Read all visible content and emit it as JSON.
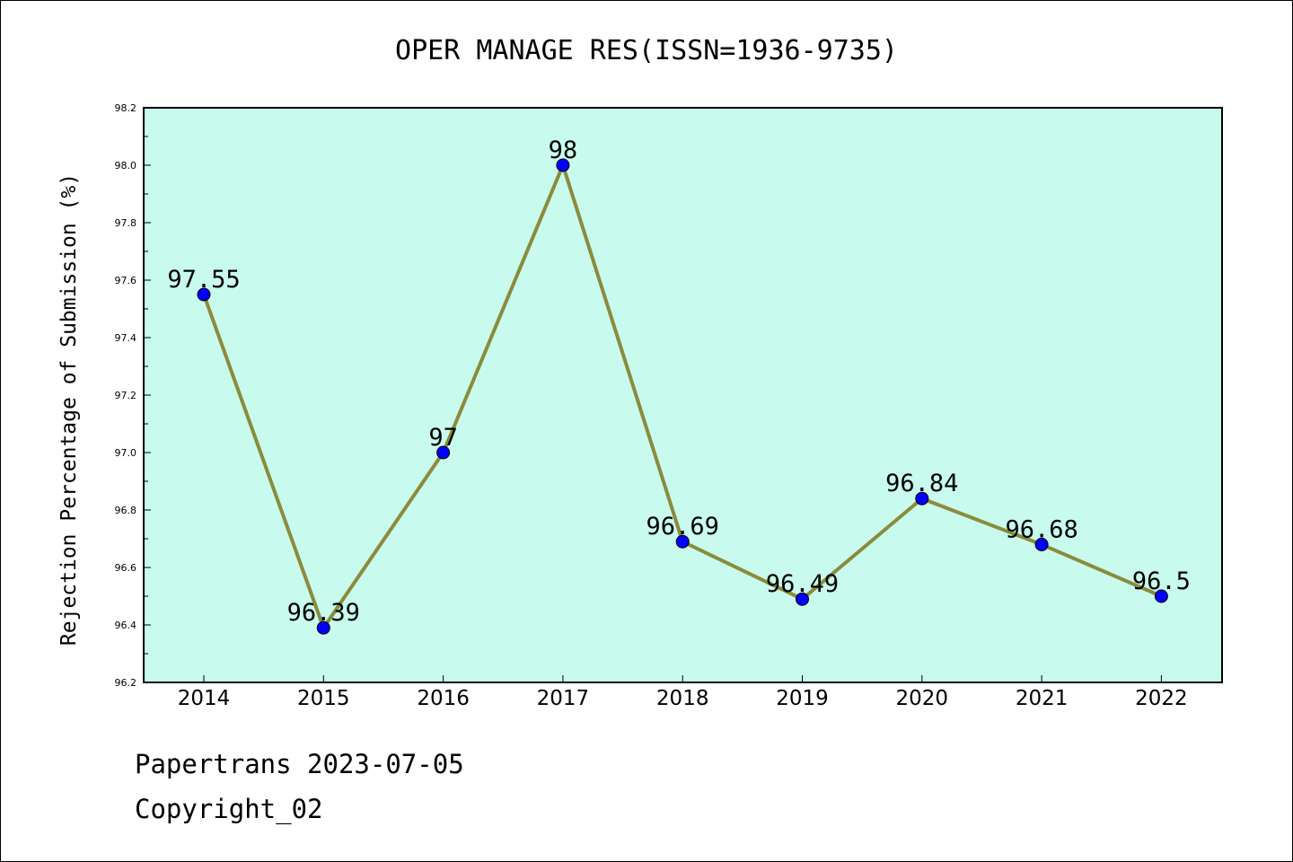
{
  "chart_data": {
    "type": "line",
    "title": "OPER MANAGE RES(ISSN=1936-9735)",
    "xlabel": "",
    "ylabel": "Rejection Percentage of Submission (%)",
    "x": [
      "2014",
      "2015",
      "2016",
      "2017",
      "2018",
      "2019",
      "2020",
      "2021",
      "2022"
    ],
    "series": [
      {
        "values": [
          97.55,
          96.39,
          97,
          98,
          96.69,
          96.49,
          96.84,
          96.68,
          96.5
        ],
        "labels": [
          "97.55",
          "96.39",
          "97",
          "98",
          "96.69",
          "96.49",
          "96.84",
          "96.68",
          "96.5"
        ]
      }
    ],
    "ylim": [
      96.2,
      98.2
    ],
    "yticks": [
      "96.2",
      "96.4",
      "96.6",
      "96.8",
      "97.0",
      "97.2",
      "97.4",
      "97.6",
      "97.8",
      "98.0",
      "98.2"
    ],
    "grid": false,
    "colors": {
      "plot_background": "#c8fbee",
      "line": "#8b8b3c",
      "marker": "#0000ff"
    }
  },
  "footer": {
    "line1": "Papertrans 2023-07-05",
    "line2": "Copyright_02"
  }
}
